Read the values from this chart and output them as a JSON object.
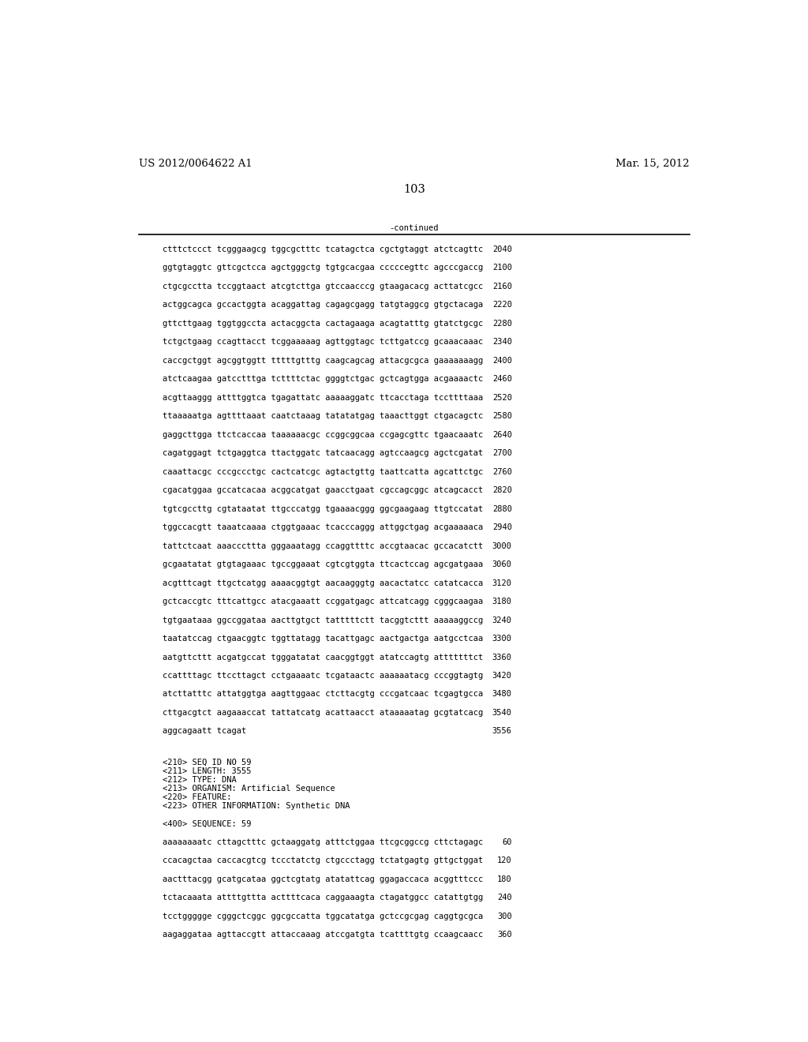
{
  "header_left": "US 2012/0064622 A1",
  "header_right": "Mar. 15, 2012",
  "page_number": "103",
  "continued_label": "-continued",
  "background_color": "#ffffff",
  "text_color": "#000000",
  "font_size_header": 9.5,
  "font_size_body": 7.5,
  "font_size_page": 10.5,
  "sequence_lines": [
    [
      "ctttctccct tcgggaagcg tggcgctttc tcatagctca cgctgtaggt atctcagttc",
      "2040"
    ],
    [
      "ggtgtaggtc gttcgctcca agctgggctg tgtgcacgaa cccccegttc agcccgaccg",
      "2100"
    ],
    [
      "ctgcgcctta tccggtaact atcgtcttga gtccaacccg gtaagacacg acttatcgcc",
      "2160"
    ],
    [
      "actggcagca gccactggta acaggattag cagagcgagg tatgtaggcg gtgctacaga",
      "2220"
    ],
    [
      "gttcttgaag tggtggccta actacggcta cactagaaga acagtatttg gtatctgcgc",
      "2280"
    ],
    [
      "tctgctgaag ccagttacct tcggaaaaag agttggtagc tcttgatccg gcaaacaaac",
      "2340"
    ],
    [
      "caccgctggt agcggtggtt tttttgtttg caagcagcag attacgcgca gaaaaaaagg",
      "2400"
    ],
    [
      "atctcaagaa gatcctttga tcttttctac ggggtctgac gctcagtgga acgaaaactc",
      "2460"
    ],
    [
      "acgttaaggg attttggtca tgagattatc aaaaaggatc ttcacctaga tccttttaaa",
      "2520"
    ],
    [
      "ttaaaaatga agttttaaat caatctaaag tatatatgag taaacttggt ctgacagctc",
      "2580"
    ],
    [
      "gaggcttgga ttctcaccaa taaaaaacgc ccggcggcaa ccgagcgttc tgaacaaatc",
      "2640"
    ],
    [
      "cagatggagt tctgaggtca ttactggatc tatcaacagg agtccaagcg agctcgatat",
      "2700"
    ],
    [
      "caaattacgc cccgccctgc cactcatcgc agtactgttg taattcatta agcattctgc",
      "2760"
    ],
    [
      "cgacatggaa gccatcacaa acggcatgat gaacctgaat cgccagcggc atcagcacct",
      "2820"
    ],
    [
      "tgtcgccttg cgtataatat ttgcccatgg tgaaaacggg ggcgaagaag ttgtccatat",
      "2880"
    ],
    [
      "tggccacgtt taaatcaaaa ctggtgaaac tcacccaggg attggctgag acgaaaaaca",
      "2940"
    ],
    [
      "tattctcaat aaacccttta gggaaatagg ccaggttttc accgtaacac gccacatctt",
      "3000"
    ],
    [
      "gcgaatatat gtgtagaaac tgccggaaat cgtcgtggta ttcactccag agcgatgaaa",
      "3060"
    ],
    [
      "acgtttcagt ttgctcatgg aaaacggtgt aacaagggtg aacactatcc catatcacca",
      "3120"
    ],
    [
      "gctcaccgtc tttcattgcc atacgaaatt ccggatgagc attcatcagg cgggcaagaa",
      "3180"
    ],
    [
      "tgtgaataaa ggccggataa aacttgtgct tatttttctt tacggtcttt aaaaaggccg",
      "3240"
    ],
    [
      "taatatccag ctgaacggtc tggttatagg tacattgagc aactgactga aatgcctcaa",
      "3300"
    ],
    [
      "aatgttcttt acgatgccat tgggatatat caacggtggt atatccagtg atttttttct",
      "3360"
    ],
    [
      "ccattttagc ttccttagct cctgaaaatc tcgataactc aaaaaatacg cccggtagtg",
      "3420"
    ],
    [
      "atcttatttc attatggtga aagttggaac ctcttacgtg cccgatcaac tcgagtgcca",
      "3480"
    ],
    [
      "cttgacgtct aagaaaccat tattatcatg acattaacct ataaaaatag gcgtatcacg",
      "3540"
    ],
    [
      "aggcagaatt tcagat",
      "3556"
    ]
  ],
  "metadata_lines": [
    "<210> SEQ ID NO 59",
    "<211> LENGTH: 3555",
    "<212> TYPE: DNA",
    "<213> ORGANISM: Artificial Sequence",
    "<220> FEATURE:",
    "<223> OTHER INFORMATION: Synthetic DNA"
  ],
  "seq400_label": "<400> SEQUENCE: 59",
  "seq59_lines": [
    [
      "aaaaaaaatc cttagctttc gctaaggatg atttctggaa ttcgcggccg cttctagagc",
      "60"
    ],
    [
      "ccacagctaa caccacgtcg tccctatctg ctgccctagg tctatgagtg gttgctggat",
      "120"
    ],
    [
      "aactttacgg gcatgcataa ggctcgtatg atatattcag ggagaccaca acggtttccc",
      "180"
    ],
    [
      "tctacaaata attttgttta acttttcaca caggaaagta ctagatggcc catattgtgg",
      "240"
    ],
    [
      "tcctggggge cgggctcggc ggcgccatta tggcatatga gctccgcgag caggtgcgca",
      "300"
    ],
    [
      "aagaggataa agttaccgtt attaccaaag atccgatgta tcattttgtg ccaagcaacc",
      "360"
    ]
  ]
}
